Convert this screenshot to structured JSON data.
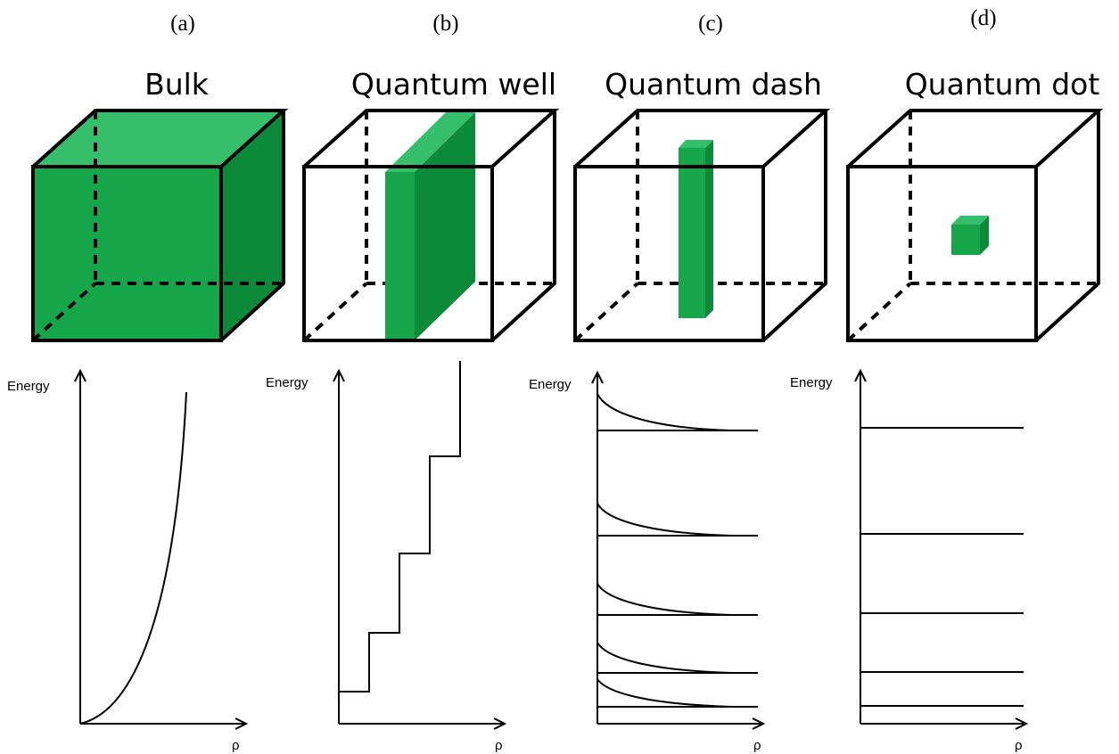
{
  "panels": [
    {
      "letter": "(a)",
      "title": "Bulk",
      "ylabel": "Energy",
      "xlabel": "ρ"
    },
    {
      "letter": "(b)",
      "title": "Quantum well",
      "ylabel": "Energy",
      "xlabel": "ρ"
    },
    {
      "letter": "(c)",
      "title": "Quantum dash",
      "ylabel": "Energy",
      "xlabel": "ρ"
    },
    {
      "letter": "(d)",
      "title": "Quantum dot",
      "ylabel": "Energy",
      "xlabel": "ρ"
    }
  ],
  "colors": {
    "green_front": "#15a64a",
    "green_top": "#36bf6b",
    "green_side": "#0b8a3a",
    "outline": "#000000"
  }
}
